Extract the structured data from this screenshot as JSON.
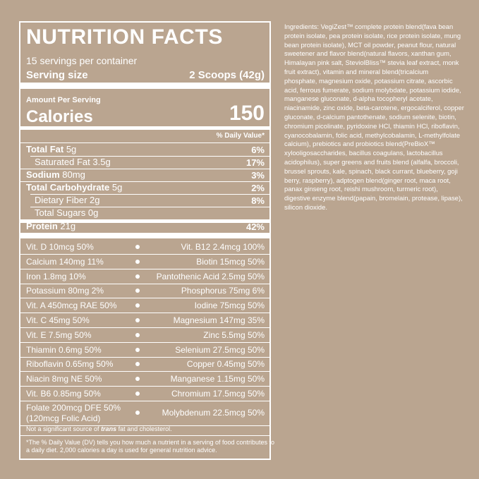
{
  "label": {
    "title": "NUTRITION FACTS",
    "servings": "15 servings per container",
    "serving_size_label": "Serving size",
    "serving_size_value": "2 Scoops (42g)",
    "amount_per_serving": "Amount Per Serving",
    "calories_label": "Calories",
    "calories_value": 150,
    "dv_header": "% Daily Value*",
    "nutrients": [
      {
        "name": "Total Fat",
        "amount": "5g",
        "dv": "6%",
        "sub": [
          {
            "name": "Saturated Fat",
            "amount": "3.5g",
            "dv": "17%"
          }
        ]
      },
      {
        "name": "Sodium",
        "amount": "80mg",
        "dv": "3%"
      },
      {
        "name": "Total Carbohydrate",
        "amount": "5g",
        "dv": "2%",
        "sub": [
          {
            "name": "Dietary Fiber",
            "amount": "2g",
            "dv": "8%"
          },
          {
            "name": "Total Sugars",
            "amount": "0g"
          }
        ]
      }
    ],
    "protein": {
      "name": "Protein",
      "amount": "21g",
      "dv": "42%"
    },
    "vitamins": [
      [
        "Vit. D 10mcg 50%",
        "Vit. B12 2.4mcg 100%"
      ],
      [
        "Calcium 140mg 11%",
        "Biotin 15mcg 50%"
      ],
      [
        "Iron 1.8mg 10%",
        "Pantothenic Acid 2.5mg 50%"
      ],
      [
        "Potassium 80mg 2%",
        "Phosphorus 75mg 6%"
      ],
      [
        "Vit. A 450mcg RAE 50%",
        "Iodine 75mcg 50%"
      ],
      [
        "Vit. C 45mg 50%",
        "Magnesium 147mg 35%"
      ],
      [
        "Vit. E 7.5mg 50%",
        "Zinc 5.5mg 50%"
      ],
      [
        "Thiamin 0.6mg 50%",
        "Selenium 27.5mcg 50%"
      ],
      [
        "Riboflavin 0.65mg 50%",
        "Copper 0.45mg 50%"
      ],
      [
        "Niacin 8mg NE 50%",
        "Manganese 1.15mg 50%"
      ],
      [
        "Vit. B6 0.85mg 50%",
        "Chromium 17.5mcg 50%"
      ],
      [
        "Folate 200mcg DFE 50% (120mcg Folic Acid)",
        "Molybdenum 22.5mcg 50%"
      ]
    ],
    "trans_note": [
      "Not a significant source of ",
      "trans",
      " fat and cholesterol."
    ],
    "dv_note": [
      "*The % Daily Value (DV) tells you how much a nutrient in a serving of food contributes to",
      "a daily diet. 2,000 calories a day is used for general nutrition advice."
    ]
  },
  "ingredients": [
    "Ingredients: VegiZest™ complete protein blend(fava bean",
    "protein isolate, pea protein isolate, rice protein isolate, mung",
    "bean protein isolate), MCT oil powder, peanut flour, natural",
    "sweetener and flavor blend(natural flavors, xanthan gum,",
    "Himalayan pink salt, SteviolBliss™ stevia leaf extract, monk",
    "fruit extract), vitamin and mineral blend(tricalcium",
    "phosphate, magnesium oxide, potassium citrate, ascorbic",
    "acid, ferrous fumerate, sodium molybdate, potassium iodide,",
    "manganese gluconate, d-alpha tocopheryl acetate,",
    "niacinamide, zinc oxide, beta-carotene, ergocalciferol, copper",
    "gluconate, d-calcium pantothenate, sodium selenite, biotin,",
    "chromium picolinate, pyridoxine HCl, thiamin HCl, riboflavin,",
    "cyanocobalamin, folic acid, methylcobalamin, L-methylfolate",
    "calcium), prebiotics and probiotics blend(PreBioX™",
    "xylooligosaccharides, bacillus coagulans, lactobacillus",
    "acidophilus), super greens and fruits blend (alfalfa, broccoli,",
    "brussel sprouts, kale, spinach, black currant, blueberry, goji",
    "berry, raspberry), adptogen blend(ginger root, maca root,",
    "panax ginseng root, reishi mushroom, turmeric root),",
    "digestive enzyme blend(papain, bromelain, protease, lipase),",
    "silicon dioxide."
  ]
}
